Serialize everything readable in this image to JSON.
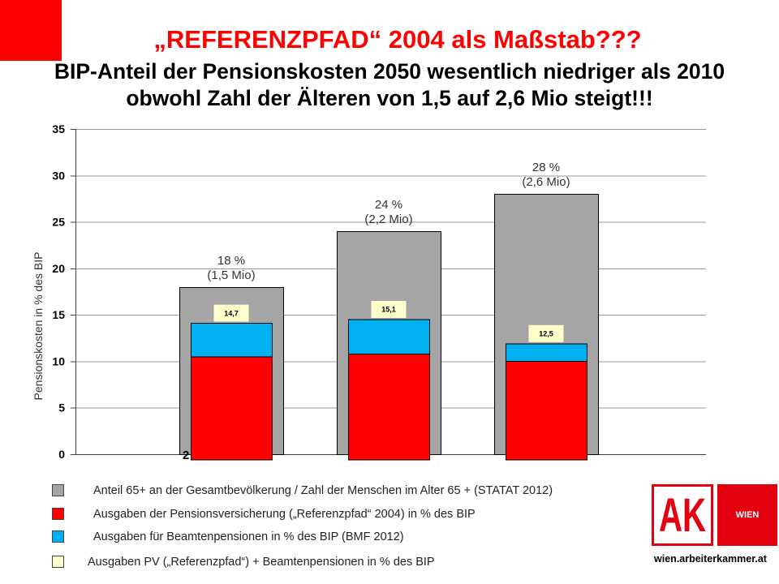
{
  "slide": {
    "title": "„REFERENZPFAD“ 2004 als Maßstab???",
    "subtitle_lines": [
      "BIP-Anteil der Pensionskosten 2050 wesentlich niedriger als 2010",
      "obwohl Zahl der Älteren von 1,5 auf 2,6 Mio steigt!!!"
    ],
    "accent_color": "#ff0000"
  },
  "chart_data": {
    "type": "bar",
    "ylabel": "Pensionskosten in % des BIP",
    "ylim": [
      0,
      35
    ],
    "yticks": [
      0,
      5,
      10,
      15,
      20,
      25,
      30,
      35
    ],
    "x_tick_fragment": "2",
    "grid": true,
    "legend_position": "bottom",
    "series": [
      {
        "name": "Anteil 65+ an der Gesamtbevölkerung / Zahl der Menschen im Alter 65 + (STATAT 2012)",
        "color": "#a5a5a5",
        "values": [
          18,
          24,
          28
        ],
        "annotations": [
          [
            "18 %",
            "(1,5 Mio)"
          ],
          [
            "24 %",
            "(2,2 Mio)"
          ],
          [
            "28 %",
            "(2,6 Mio)"
          ]
        ]
      },
      {
        "name": "Ausgaben der Pensionsversicherung („Referenzpfad“ 2004) in % des BIP",
        "color": "#ff0000",
        "values": [
          11.1,
          11.4,
          10.6
        ],
        "stacked": true
      },
      {
        "name": "Ausgaben für Beamtenpensionen in % des BIP (BMF 2012)",
        "color": "#00b0f0",
        "values": [
          3.6,
          3.7,
          1.9
        ],
        "stacked": true
      },
      {
        "name": "Ausgaben PV („Referenzpfad“) + Beamtenpensionen in % des BIP",
        "color": "#ffffcc",
        "values": [
          14.7,
          15.1,
          12.5
        ],
        "data_labels": [
          "14,7",
          "15,1",
          "12,5"
        ]
      }
    ]
  },
  "branding": {
    "logo_text": "AK",
    "logo_region": "WIEN",
    "url": "wien.arbeiterkammer.at",
    "brand_color": "#e3000f"
  }
}
